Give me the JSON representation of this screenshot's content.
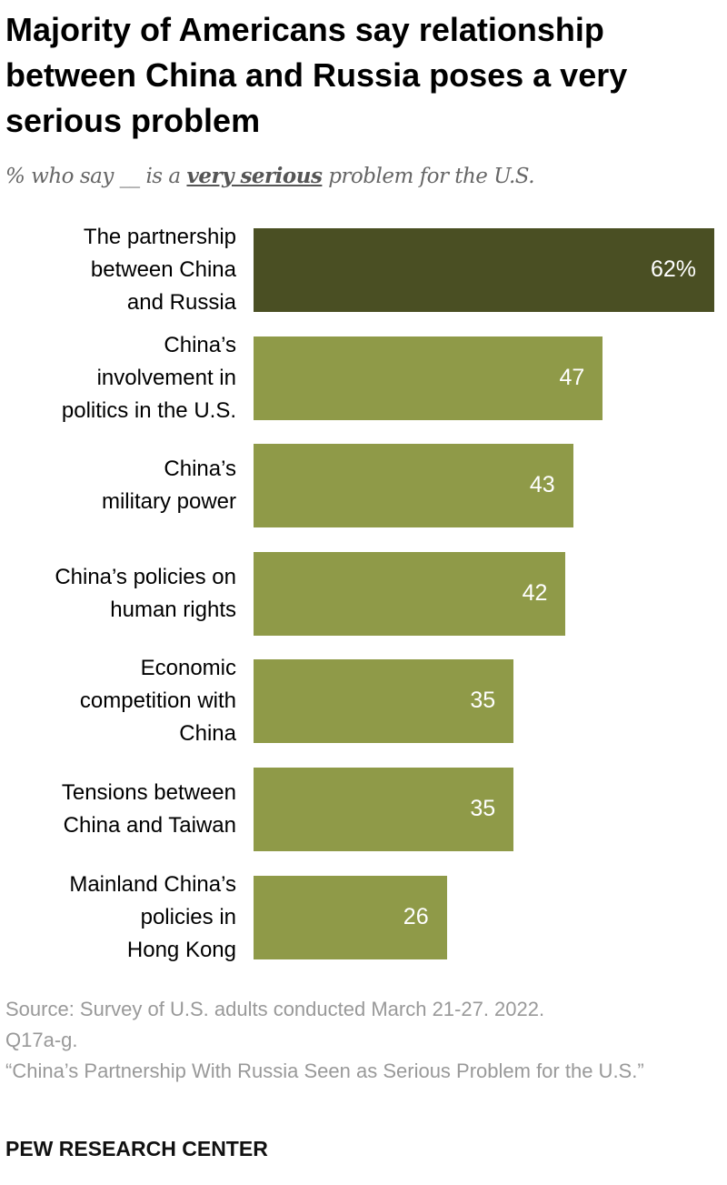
{
  "chart_data": {
    "type": "bar",
    "orientation": "horizontal",
    "title": "Majority of Americans say relationship between China and Russia poses a very serious problem",
    "subtitle": {
      "before": "% who say __ is a ",
      "emphasis": "very serious",
      "after": " problem for the U.S."
    },
    "categories": [
      "The partnership\nbetween China\nand Russia",
      "China’s\ninvolvement in\npolitics in the U.S.",
      "China’s\nmilitary power",
      "China’s policies on\nhuman rights",
      "Economic\ncompetition with\nChina",
      "Tensions between\nChina and Taiwan",
      "Mainland China’s\npolicies in\nHong Kong"
    ],
    "values": [
      62,
      47,
      43,
      42,
      35,
      35,
      26
    ],
    "data_labels": [
      "62%",
      "47",
      "43",
      "42",
      "35",
      "35",
      "26"
    ],
    "colors": {
      "highlight": "#4a4f23",
      "default": "#8f9a48"
    },
    "xlim": [
      0,
      62
    ],
    "grid": false
  },
  "footer": {
    "source": "Source: Survey of U.S. adults conducted March 21-27. 2022.\nQ17a-g.",
    "report": "“China’s Partnership With Russia Seen as Serious Problem for the U.S.”",
    "brand": "PEW RESEARCH CENTER"
  }
}
